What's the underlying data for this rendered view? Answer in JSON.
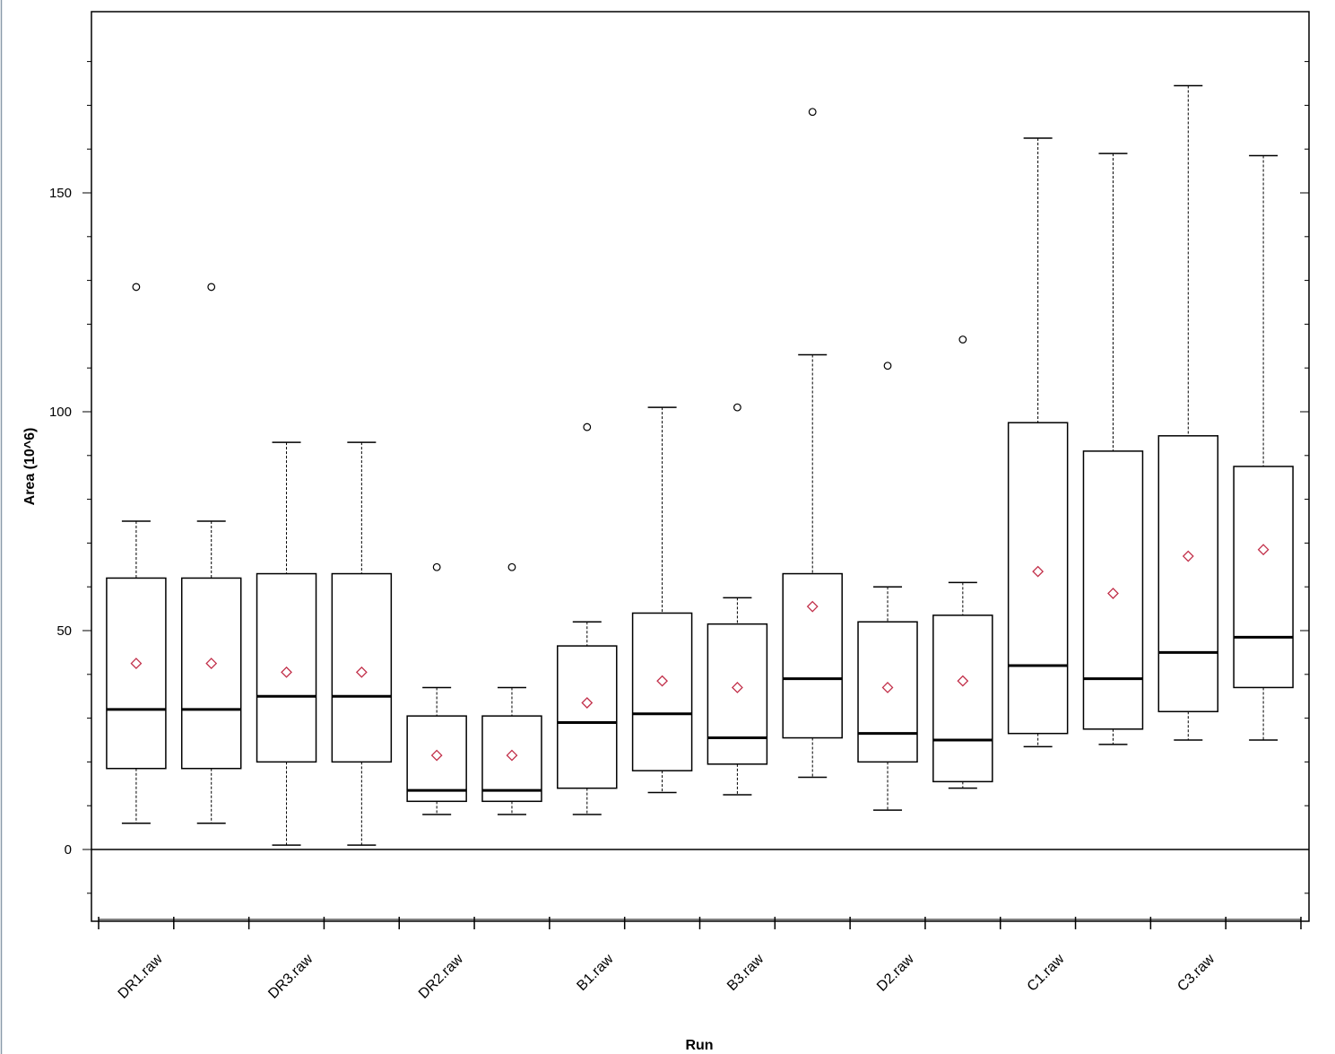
{
  "chart_data": {
    "type": "box",
    "title": "",
    "xlabel": "Run",
    "ylabel": "Area (10^6)",
    "ylim": [
      -16.5,
      191
    ],
    "yticks": [
      0,
      50,
      100,
      150
    ],
    "category_labels": [
      "DR1.raw",
      "DR3.raw",
      "DR2.raw",
      "B1.raw",
      "B3.raw",
      "D2.raw",
      "C1.raw",
      "C3.raw"
    ],
    "boxes": [
      {
        "whisker_low": 6,
        "q1": 18.5,
        "median": 32,
        "q3": 62,
        "whisker_high": 75,
        "mean": 42.5,
        "outliers": [
          128.5
        ]
      },
      {
        "whisker_low": 6,
        "q1": 18.5,
        "median": 32,
        "q3": 62,
        "whisker_high": 75,
        "mean": 42.5,
        "outliers": [
          128.5
        ]
      },
      {
        "whisker_low": 1,
        "q1": 20,
        "median": 35,
        "q3": 63,
        "whisker_high": 93,
        "mean": 40.5,
        "outliers": []
      },
      {
        "whisker_low": 1,
        "q1": 20,
        "median": 35,
        "q3": 63,
        "whisker_high": 93,
        "mean": 40.5,
        "outliers": []
      },
      {
        "whisker_low": 8,
        "q1": 11,
        "median": 13.5,
        "q3": 30.5,
        "whisker_high": 37,
        "mean": 21.5,
        "outliers": [
          64.5
        ]
      },
      {
        "whisker_low": 8,
        "q1": 11,
        "median": 13.5,
        "q3": 30.5,
        "whisker_high": 37,
        "mean": 21.5,
        "outliers": [
          64.5
        ]
      },
      {
        "whisker_low": 8,
        "q1": 14,
        "median": 29,
        "q3": 46.5,
        "whisker_high": 52,
        "mean": 33.5,
        "outliers": [
          96.5
        ]
      },
      {
        "whisker_low": 13,
        "q1": 18,
        "median": 31,
        "q3": 54,
        "whisker_high": 101,
        "mean": 38.5,
        "outliers": []
      },
      {
        "whisker_low": 12.5,
        "q1": 19.5,
        "median": 25.5,
        "q3": 51.5,
        "whisker_high": 57.5,
        "mean": 37,
        "outliers": [
          101
        ]
      },
      {
        "whisker_low": 16.5,
        "q1": 25.5,
        "median": 39,
        "q3": 63,
        "whisker_high": 113,
        "mean": 55.5,
        "outliers": [
          168.5
        ]
      },
      {
        "whisker_low": 9,
        "q1": 20,
        "median": 26.5,
        "q3": 52,
        "whisker_high": 60,
        "mean": 37,
        "outliers": [
          110.5
        ]
      },
      {
        "whisker_low": 14,
        "q1": 15.5,
        "median": 25,
        "q3": 53.5,
        "whisker_high": 61,
        "mean": 38.5,
        "outliers": [
          116.5
        ]
      },
      {
        "whisker_low": 23.5,
        "q1": 26.5,
        "median": 42,
        "q3": 97.5,
        "whisker_high": 162.5,
        "mean": 63.5,
        "outliers": []
      },
      {
        "whisker_low": 24,
        "q1": 27.5,
        "median": 39,
        "q3": 91,
        "whisker_high": 159,
        "mean": 58.5,
        "outliers": []
      },
      {
        "whisker_low": 25,
        "q1": 31.5,
        "median": 45,
        "q3": 94.5,
        "whisker_high": 174.5,
        "mean": 67,
        "outliers": []
      },
      {
        "whisker_low": 25,
        "q1": 37,
        "median": 48.5,
        "q3": 87.5,
        "whisker_high": 158.5,
        "mean": 68.5,
        "outliers": []
      }
    ],
    "colors": {
      "axis": "#000000",
      "box": "#000000",
      "mean_marker": "#c2304a",
      "outlier": "#000000"
    },
    "mean_marker": "diamond",
    "outlier_marker": "circle",
    "reference_line": 0,
    "grid": false,
    "legend": "none"
  }
}
